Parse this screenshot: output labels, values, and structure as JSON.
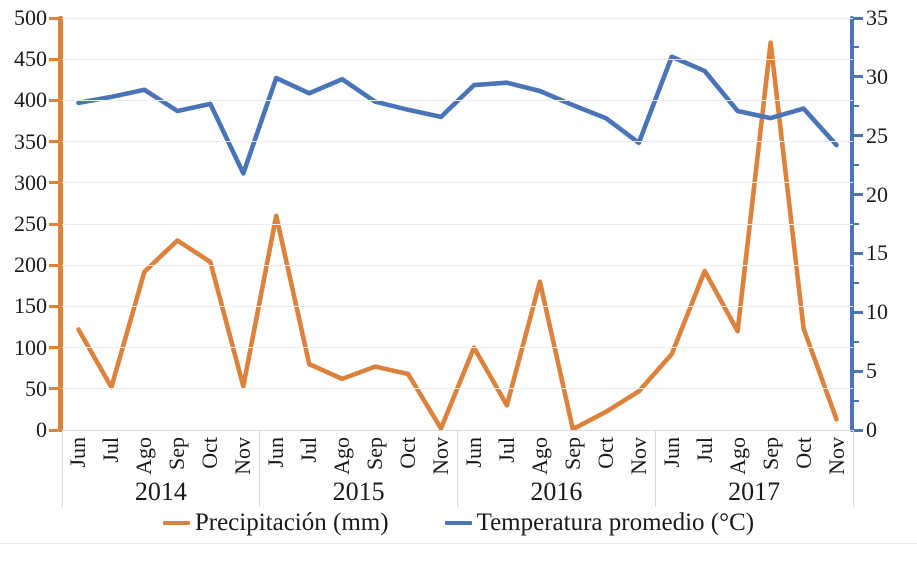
{
  "chart_data": {
    "type": "line",
    "title": "",
    "x": {
      "months": [
        "Jun",
        "Jul",
        "Ago",
        "Sep",
        "Oct",
        "Nov"
      ],
      "years": [
        "2014",
        "2015",
        "2016",
        "2017"
      ]
    },
    "series": [
      {
        "name": "Precipitación (mm)",
        "axis": "left",
        "color": "#DC823C",
        "values": [
          122,
          52,
          192,
          230,
          204,
          53,
          260,
          80,
          62,
          77,
          68,
          2,
          100,
          30,
          180,
          1,
          22,
          47,
          92,
          193,
          120,
          470,
          123,
          13
        ]
      },
      {
        "name": "Temperatura promedio (°C)",
        "axis": "right",
        "color": "#4A74B8",
        "values": [
          27.8,
          28.3,
          28.9,
          27.1,
          27.7,
          21.8,
          29.9,
          28.6,
          29.8,
          27.9,
          27.2,
          26.6,
          29.3,
          29.5,
          28.8,
          27.6,
          26.5,
          24.4,
          31.7,
          30.5,
          27.1,
          26.5,
          27.3,
          24.2
        ]
      }
    ],
    "left_axis": {
      "min": 0,
      "max": 500,
      "tick_step": 50,
      "tick_labels": [
        "500",
        "450",
        "400",
        "350",
        "300",
        "250",
        "200",
        "150",
        "100",
        "50",
        "0"
      ]
    },
    "right_axis": {
      "min": 0,
      "max": 35,
      "tick_step": 5,
      "minor_tick_step": 2.5,
      "tick_labels": [
        "35",
        "30",
        "25",
        "20",
        "15",
        "10",
        "5",
        "0"
      ]
    },
    "grid": "horizontal",
    "legend_position": "bottom",
    "colors": {
      "gridline": "#EDEDED",
      "separator": "#D9D9D9",
      "text": "#1A1A1A"
    }
  }
}
